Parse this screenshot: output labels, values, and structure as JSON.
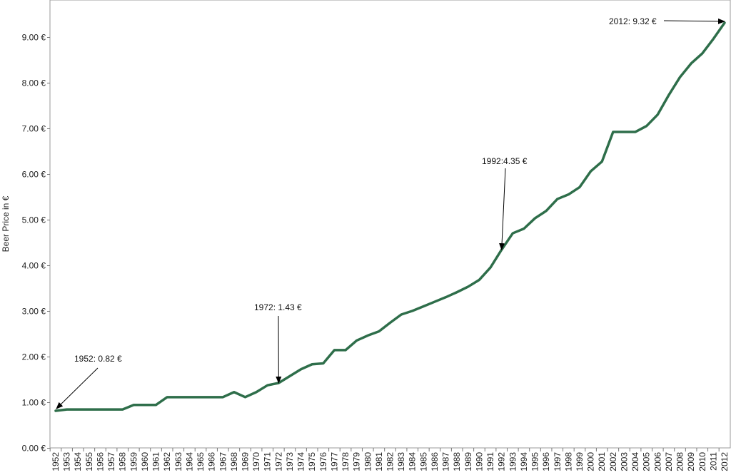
{
  "chart_data": {
    "type": "line",
    "title": "",
    "xlabel": "",
    "ylabel": "Beer Price in €",
    "ylim": [
      0,
      9.32
    ],
    "grid": false,
    "line_color": "#2e6e4a",
    "x": [
      1952,
      1953,
      1954,
      1955,
      1956,
      1957,
      1958,
      1959,
      1960,
      1961,
      1962,
      1963,
      1964,
      1965,
      1966,
      1967,
      1968,
      1969,
      1970,
      1971,
      1972,
      1973,
      1974,
      1975,
      1976,
      1977,
      1978,
      1979,
      1980,
      1981,
      1982,
      1983,
      1984,
      1985,
      1986,
      1987,
      1988,
      1989,
      1990,
      1991,
      1992,
      1993,
      1994,
      1995,
      1996,
      1997,
      1998,
      1999,
      2000,
      2001,
      2002,
      2003,
      2004,
      2005,
      2006,
      2007,
      2008,
      2009,
      2010,
      2011,
      2012
    ],
    "series": [
      {
        "values": [
          0.82,
          0.85,
          0.85,
          0.85,
          0.85,
          0.85,
          0.85,
          0.95,
          0.95,
          0.95,
          1.12,
          1.12,
          1.12,
          1.12,
          1.12,
          1.12,
          1.23,
          1.12,
          1.23,
          1.38,
          1.43,
          1.58,
          1.73,
          1.84,
          1.86,
          2.15,
          2.15,
          2.36,
          2.47,
          2.56,
          2.75,
          2.93,
          3.01,
          3.11,
          3.21,
          3.31,
          3.42,
          3.54,
          3.69,
          3.96,
          4.35,
          4.71,
          4.81,
          5.04,
          5.2,
          5.46,
          5.56,
          5.72,
          6.07,
          6.28,
          6.93,
          6.93,
          6.93,
          7.06,
          7.31,
          7.74,
          8.13,
          8.43,
          8.65,
          8.97,
          9.32
        ]
      }
    ],
    "yticks": [
      "0.00 €",
      "1.00 €",
      "2.00 €",
      "3.00 €",
      "4.00 €",
      "5.00 €",
      "6.00 €",
      "7.00 €",
      "8.00 €",
      "9.00 €"
    ],
    "ytick_values": [
      0,
      1,
      2,
      3,
      4,
      5,
      6,
      7,
      8,
      9
    ],
    "annotations": [
      {
        "text": "1952: 0.82 €",
        "x": 1952,
        "y": 0.82
      },
      {
        "text": "1972: 1.43 €",
        "x": 1972,
        "y": 1.43
      },
      {
        "text": "1992:4.35 €",
        "x": 1992,
        "y": 4.35
      },
      {
        "text": "2012: 9.32 €",
        "x": 2012,
        "y": 9.32
      }
    ]
  }
}
